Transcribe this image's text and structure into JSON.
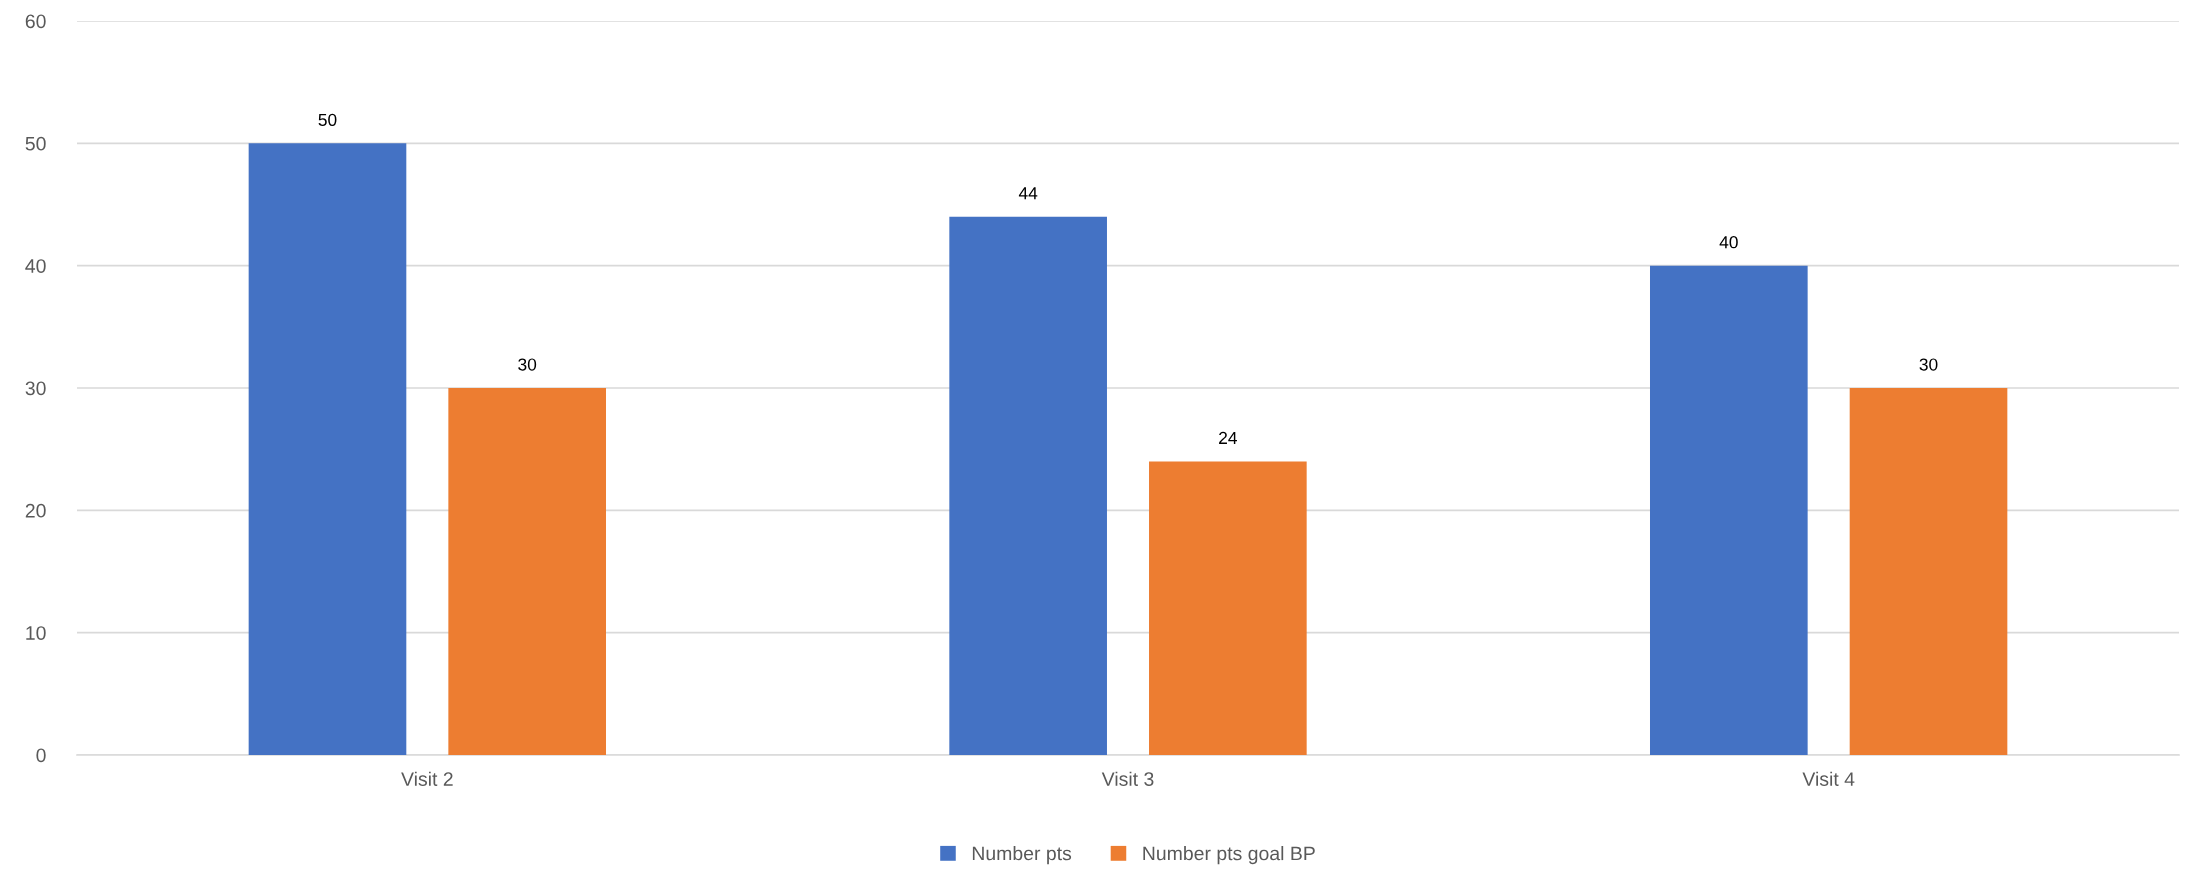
{
  "chart_data": {
    "type": "bar",
    "categories": [
      "Visit 2",
      "Visit 3",
      "Visit 4"
    ],
    "series": [
      {
        "name": "Number pts",
        "color": "#4472c4",
        "values": [
          50,
          44,
          40
        ]
      },
      {
        "name": "Number pts goal BP",
        "color": "#ed7d31",
        "values": [
          30,
          24,
          30
        ]
      }
    ],
    "ylim": [
      0,
      60
    ],
    "yticks": [
      0,
      10,
      20,
      30,
      40,
      50,
      60
    ],
    "grid": "y",
    "legend": "bottom",
    "data_labels": true
  }
}
